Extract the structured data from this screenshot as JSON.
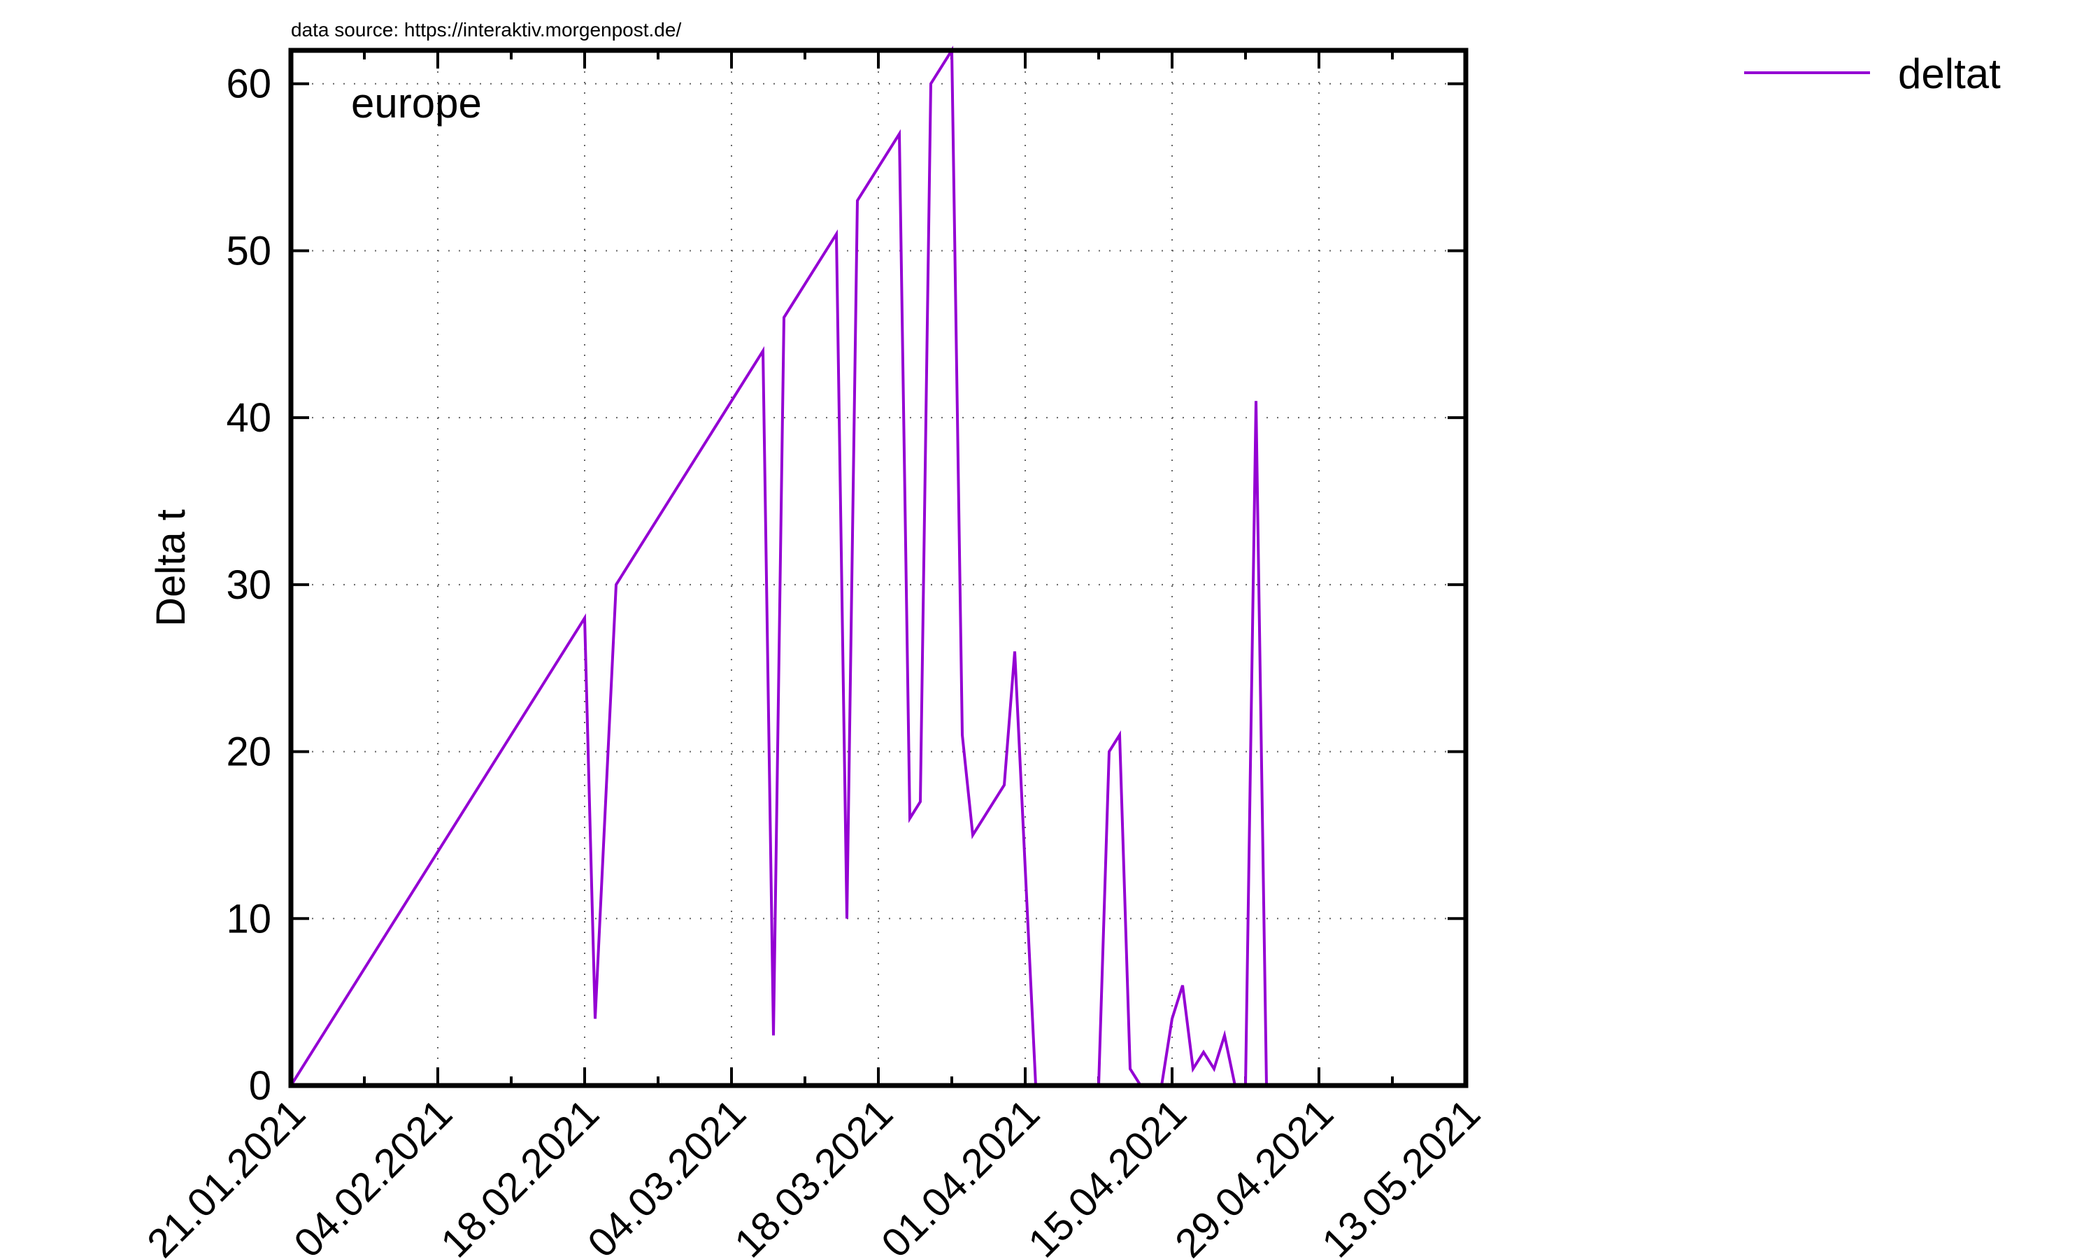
{
  "source_note": "data source: https://interaktiv.morgenpost.de/",
  "chart_data": {
    "type": "line",
    "title": "",
    "annotation": "europe",
    "xlabel": "",
    "ylabel": "Delta t",
    "x_tick_labels": [
      "21.01.2021",
      "04.02.2021",
      "18.02.2021",
      "04.03.2021",
      "18.03.2021",
      "01.04.2021",
      "15.04.2021",
      "29.04.2021",
      "13.05.2021"
    ],
    "y_tick_labels": [
      "0",
      "10",
      "20",
      "30",
      "40",
      "50",
      "60"
    ],
    "xlim": [
      "2021-01-21",
      "2021-05-13"
    ],
    "ylim": [
      0,
      62
    ],
    "grid": true,
    "legend_position": "top-right",
    "series": [
      {
        "name": "deltat",
        "color": "#9400d3",
        "points": [
          [
            "2021-01-21",
            0
          ],
          [
            "2021-02-18",
            28
          ],
          [
            "2021-02-19",
            4
          ],
          [
            "2021-02-21",
            30
          ],
          [
            "2021-03-07",
            44
          ],
          [
            "2021-03-08",
            3
          ],
          [
            "2021-03-09",
            46
          ],
          [
            "2021-03-14",
            51
          ],
          [
            "2021-03-15",
            10
          ],
          [
            "2021-03-16",
            53
          ],
          [
            "2021-03-20",
            57
          ],
          [
            "2021-03-21",
            16
          ],
          [
            "2021-03-22",
            17
          ],
          [
            "2021-03-23",
            60
          ],
          [
            "2021-03-25",
            62
          ],
          [
            "2021-03-26",
            21
          ],
          [
            "2021-03-27",
            15
          ],
          [
            "2021-03-30",
            18
          ],
          [
            "2021-03-31",
            26
          ],
          [
            "2021-04-02",
            0
          ],
          [
            "2021-04-08",
            0
          ],
          [
            "2021-04-09",
            20
          ],
          [
            "2021-04-10",
            21
          ],
          [
            "2021-04-11",
            1
          ],
          [
            "2021-04-12",
            0
          ],
          [
            "2021-04-14",
            0
          ],
          [
            "2021-04-15",
            4
          ],
          [
            "2021-04-16",
            6
          ],
          [
            "2021-04-17",
            1
          ],
          [
            "2021-04-18",
            2
          ],
          [
            "2021-04-19",
            1
          ],
          [
            "2021-04-20",
            3
          ],
          [
            "2021-04-21",
            0
          ],
          [
            "2021-04-22",
            0
          ],
          [
            "2021-04-23",
            41
          ],
          [
            "2021-04-24",
            0
          ]
        ]
      }
    ]
  }
}
